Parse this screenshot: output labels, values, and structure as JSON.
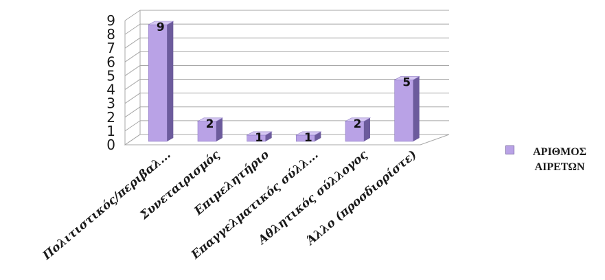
{
  "chart_data": {
    "type": "bar",
    "categories": [
      "Πολιτιστικός/περιβαλ...",
      "Συνεταιρισμός",
      "Επιμελητήριο",
      "Επαγγελματικός σύλλ...",
      "Αθλητικός σύλλογος",
      "Άλλο (προσδιορίστε)"
    ],
    "series": [
      {
        "name": "ΑΡΙΘΜΟΣ ΑΙΡΕΤΩΝ",
        "values": [
          9,
          2,
          1,
          1,
          2,
          5
        ]
      }
    ],
    "y_ticks": [
      "0",
      "1",
      "2",
      "3",
      "4",
      "5",
      "6",
      "7",
      "8",
      "9"
    ],
    "ylim": [
      0,
      9
    ],
    "grid": true,
    "legend_position": "right",
    "style": "3d-column",
    "colors": {
      "bar_front": "#b9a2e6",
      "bar_side": "#6c5b9c",
      "bar_top": "#d6c8f3",
      "grid": "#a7a7a7",
      "text": "#1a1a1a"
    }
  }
}
